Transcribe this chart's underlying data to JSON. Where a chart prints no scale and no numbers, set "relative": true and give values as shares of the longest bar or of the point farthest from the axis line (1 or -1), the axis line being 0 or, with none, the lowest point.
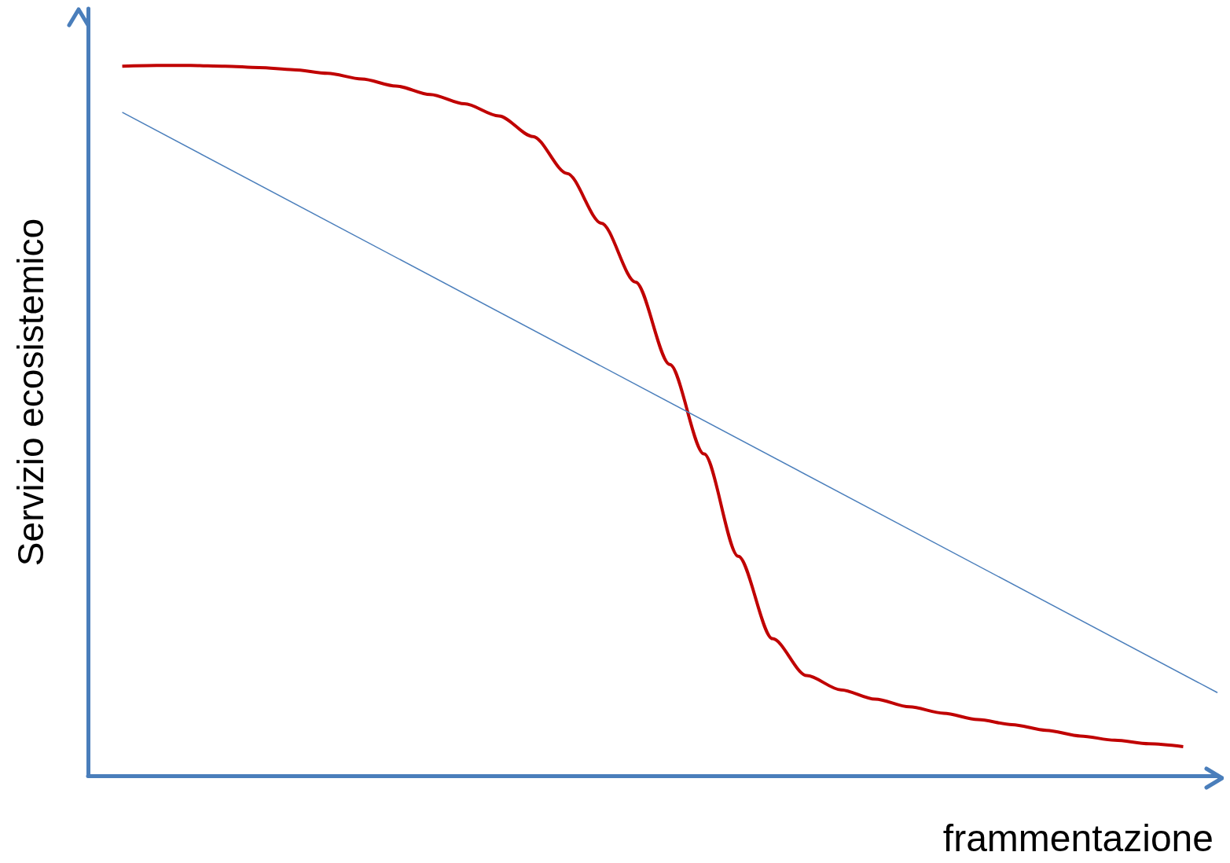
{
  "chart_data": {
    "type": "line",
    "relative": true,
    "xlabel": "frammentazione",
    "ylabel": "Servizio ecosistemico",
    "marker": "none",
    "categories": [
      null,
      null,
      null,
      null,
      null,
      null,
      null,
      null,
      null,
      null,
      null,
      null,
      null,
      null,
      null,
      null,
      null,
      null,
      null,
      null,
      null,
      null,
      null,
      null,
      null,
      null,
      null,
      null,
      null,
      null,
      null,
      null,
      null,
      null
    ],
    "series": [
      {
        "color": "#c00000",
        "values": [
          null,
          0.999,
          1.0,
          1.0,
          0.999,
          0.997,
          0.994,
          0.989,
          0.981,
          0.971,
          0.959,
          0.946,
          0.929,
          0.9,
          0.848,
          0.778,
          0.695,
          0.579,
          0.453,
          0.309,
          0.193,
          0.141,
          0.121,
          0.108,
          0.097,
          0.088,
          0.079,
          0.072,
          0.064,
          0.056,
          0.05,
          0.045,
          0.041,
          null
        ]
      },
      {
        "color": "#4a7ebb",
        "values": [
          null,
          0.934,
          null,
          null,
          null,
          null,
          null,
          null,
          null,
          null,
          null,
          null,
          null,
          null,
          null,
          null,
          null,
          null,
          null,
          null,
          null,
          null,
          null,
          null,
          null,
          null,
          null,
          null,
          null,
          null,
          null,
          null,
          null,
          0.117
        ]
      }
    ]
  }
}
